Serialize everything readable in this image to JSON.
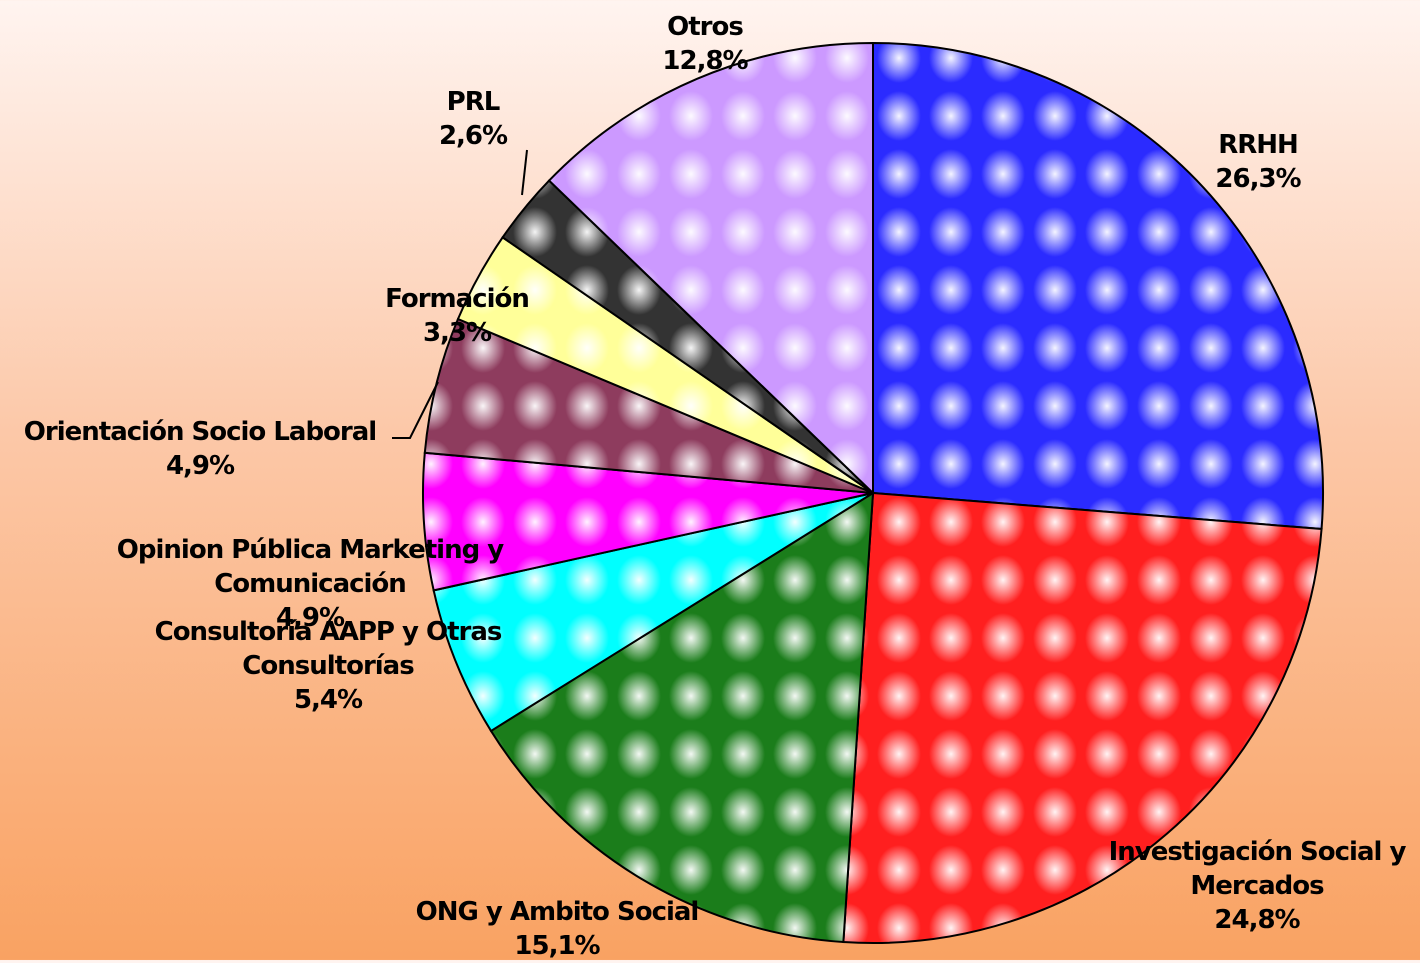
{
  "chart_data": {
    "type": "pie",
    "categories": [
      "RRHH",
      "Investigación Social y Mercados",
      "ONG y Ambito Social",
      "Consultoría AAPP y Otras Consultorías",
      "Opinion Pública Marketing y Comunicación",
      "Orientación Socio Laboral",
      "Formación",
      "PRL",
      "Otros"
    ],
    "values": [
      26.3,
      24.8,
      15.1,
      5.4,
      4.9,
      4.9,
      3.3,
      2.6,
      12.8
    ],
    "value_labels": [
      "26,3%",
      "24,8%",
      "15,1%",
      "5,4%",
      "4,9%",
      "4,9%",
      "3,3%",
      "2,6%",
      "12,8%"
    ],
    "colors": [
      "#2b2bff",
      "#ff1f1f",
      "#1b7d1b",
      "#00ffff",
      "#ff00ff",
      "#8e3c5e",
      "#ffff99",
      "#333333",
      "#cc99ff"
    ]
  }
}
